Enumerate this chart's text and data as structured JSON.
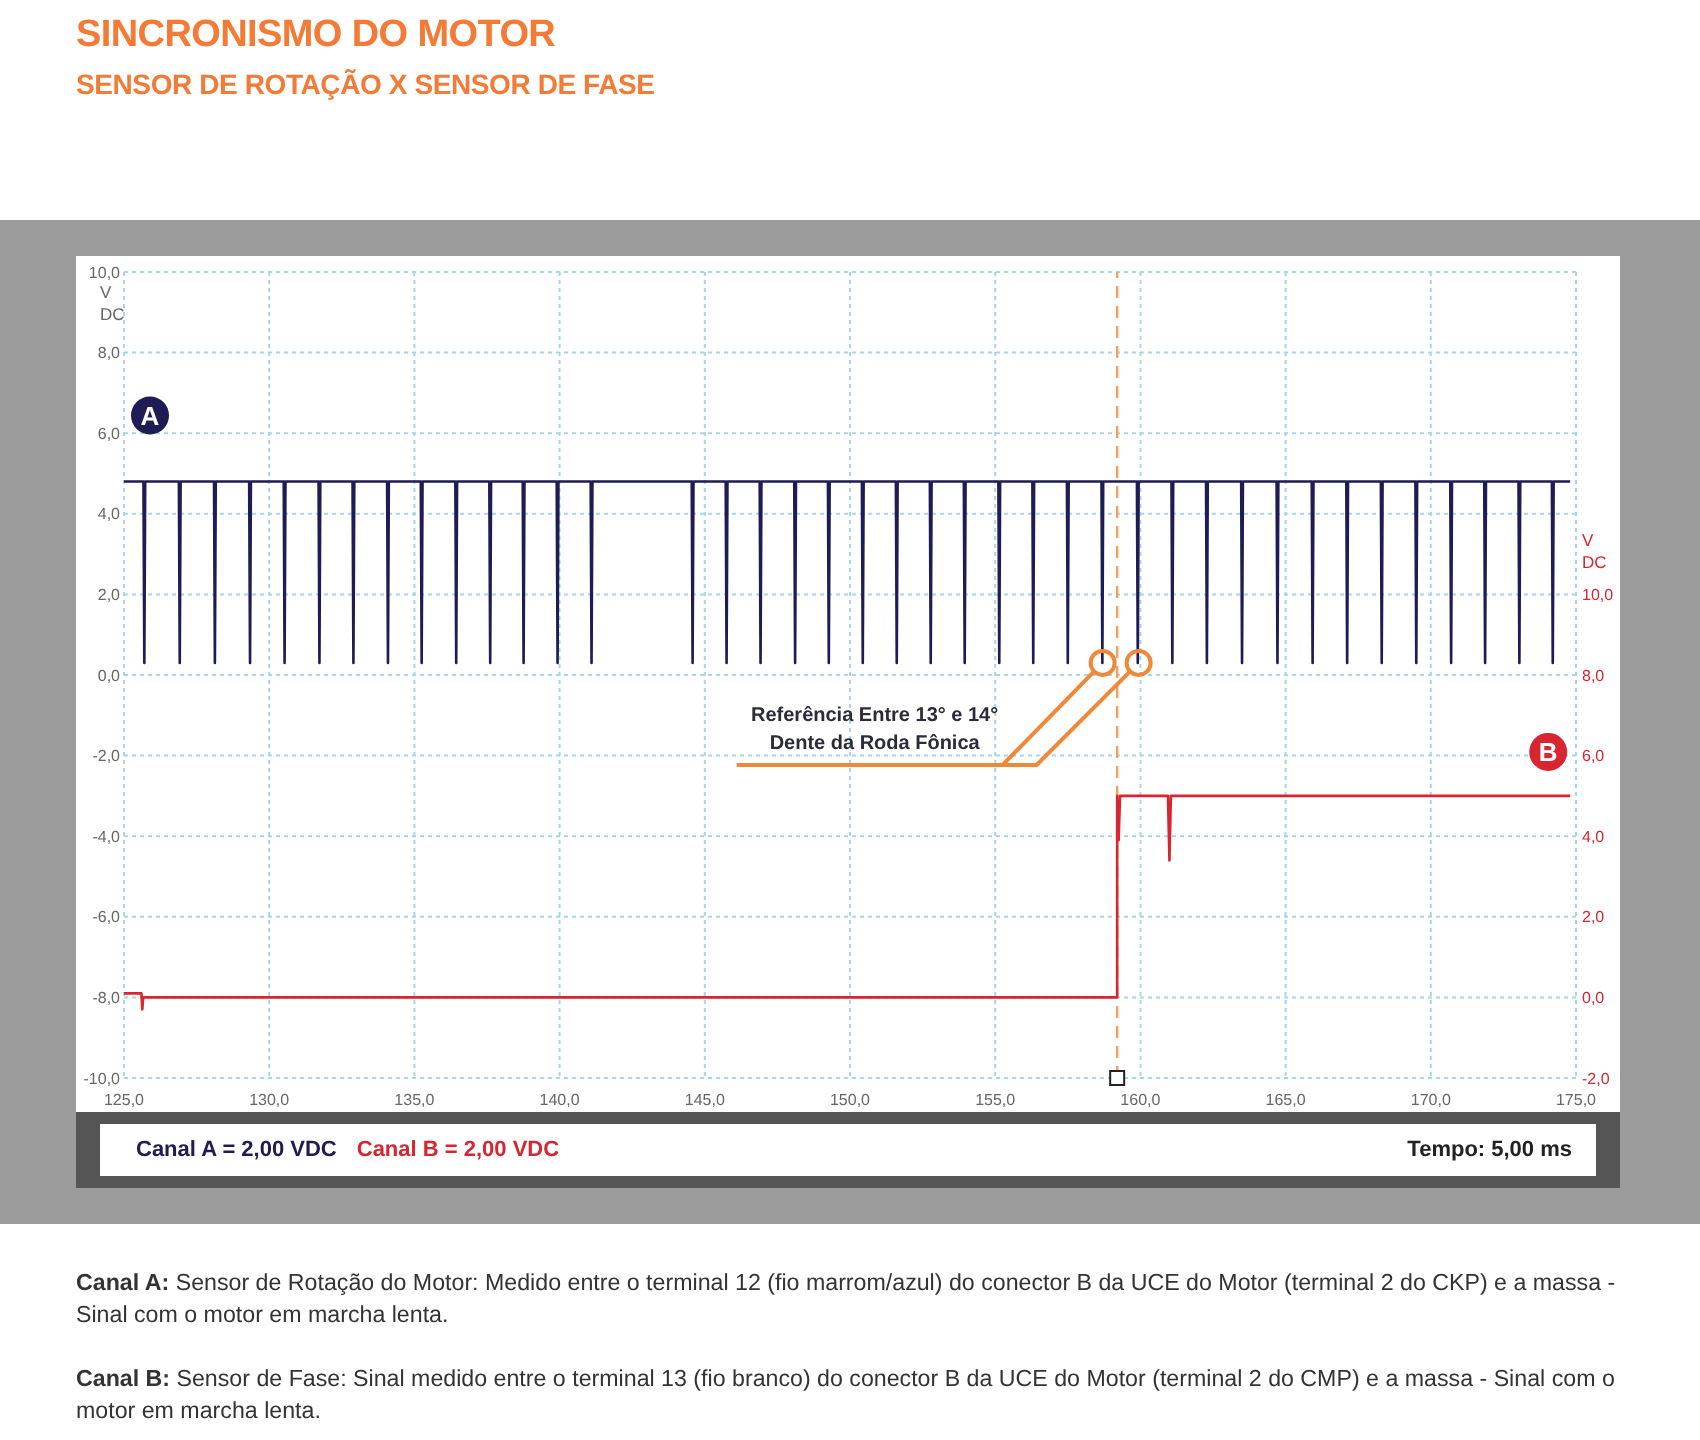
{
  "chart_data": {
    "type": "line",
    "title": "SINCRONISMO DO MOTOR",
    "subtitle": "SENSOR DE ROTAÇÃO X SENSOR DE FASE",
    "ylabel": "V\nDC",
    "y2label": "V\nDC",
    "xlim": [
      125,
      175
    ],
    "xticks": [
      {
        "value": 125,
        "label": "125,0"
      },
      {
        "value": 130,
        "label": "130,0"
      },
      {
        "value": 135,
        "label": "135,0"
      },
      {
        "value": 140,
        "label": "140,0"
      },
      {
        "value": 145,
        "label": "145,0"
      },
      {
        "value": 150,
        "label": "150,0"
      },
      {
        "value": 155,
        "label": "155,0"
      },
      {
        "value": 160,
        "label": "160,0"
      },
      {
        "value": 165,
        "label": "165,0"
      },
      {
        "value": 170,
        "label": "170,0"
      },
      {
        "value": 175,
        "label": "175,0"
      }
    ],
    "ylim": [
      -10,
      10
    ],
    "yticks": [
      {
        "value": -10,
        "label": "-10,0"
      },
      {
        "value": -8,
        "label": "-8,0"
      },
      {
        "value": -6,
        "label": "-6,0"
      },
      {
        "value": -4,
        "label": "-4,0"
      },
      {
        "value": -2,
        "label": "-2,0"
      },
      {
        "value": 0,
        "label": "0,0"
      },
      {
        "value": 2,
        "label": "2,0"
      },
      {
        "value": 4,
        "label": "4,0"
      },
      {
        "value": 6,
        "label": "6,0"
      },
      {
        "value": 8,
        "label": "8,0"
      },
      {
        "value": 10,
        "label": "10,0"
      }
    ],
    "y2lim": [
      -2,
      18
    ],
    "y2ticks": [
      {
        "value": -2,
        "label": "-2,0"
      },
      {
        "value": 0,
        "label": "0,0"
      },
      {
        "value": 2,
        "label": "2,0"
      },
      {
        "value": 4,
        "label": "4,0"
      },
      {
        "value": 6,
        "label": "6,0"
      },
      {
        "value": 8,
        "label": "8,0"
      },
      {
        "value": 10,
        "label": "10,0"
      }
    ],
    "grid": true,
    "marker": "none",
    "series": [
      {
        "name": "A",
        "color": "#1f1b55",
        "x": [
          125.0,
          125.67,
          125.7,
          125.73,
          126.89,
          126.92,
          126.95,
          128.1,
          128.13,
          128.16,
          129.31,
          129.34,
          129.37,
          130.5,
          130.53,
          130.56,
          131.7,
          131.73,
          131.76,
          132.87,
          132.9,
          132.93,
          134.06,
          134.09,
          134.12,
          135.22,
          135.25,
          135.28,
          136.41,
          136.44,
          136.47,
          137.58,
          137.61,
          137.64,
          138.73,
          138.76,
          138.79,
          139.9,
          139.93,
          139.96,
          141.07,
          141.1,
          141.13,
          144.55,
          144.58,
          144.61,
          145.72,
          145.75,
          145.78,
          146.89,
          146.92,
          146.95,
          148.08,
          148.11,
          148.14,
          149.24,
          149.27,
          149.3,
          150.41,
          150.44,
          150.47,
          151.58,
          151.61,
          151.64,
          152.75,
          152.78,
          152.81,
          153.92,
          153.95,
          153.98,
          155.11,
          155.14,
          155.17,
          156.28,
          156.31,
          156.34,
          157.47,
          157.5,
          157.53,
          158.66,
          158.69,
          158.72,
          159.88,
          159.91,
          159.94,
          161.07,
          161.1,
          161.13,
          162.26,
          162.29,
          162.32,
          163.47,
          163.5,
          163.53,
          164.69,
          164.72,
          164.75,
          165.9,
          165.93,
          165.96,
          167.09,
          167.12,
          167.15,
          168.28,
          168.31,
          168.34,
          169.47,
          169.5,
          169.53,
          170.67,
          170.7,
          170.73,
          171.84,
          171.87,
          171.9,
          173.02,
          173.05,
          173.08,
          174.17,
          174.2,
          174.23,
          174.8
        ],
        "values": [
          4.8,
          4.8,
          0.3,
          4.8,
          4.8,
          0.3,
          4.8,
          4.8,
          0.3,
          4.8,
          4.8,
          0.3,
          4.8,
          4.8,
          0.3,
          4.8,
          4.8,
          0.3,
          4.8,
          4.8,
          0.3,
          4.8,
          4.8,
          0.3,
          4.8,
          4.8,
          0.3,
          4.8,
          4.8,
          0.3,
          4.8,
          4.8,
          0.3,
          4.8,
          4.8,
          0.3,
          4.8,
          4.8,
          0.3,
          4.8,
          4.8,
          0.3,
          4.8,
          4.8,
          0.3,
          4.8,
          4.8,
          0.3,
          4.8,
          4.8,
          0.3,
          4.8,
          4.8,
          0.3,
          4.8,
          4.8,
          0.3,
          4.8,
          4.8,
          0.3,
          4.8,
          4.8,
          0.3,
          4.8,
          4.8,
          0.3,
          4.8,
          4.8,
          0.3,
          4.8,
          4.8,
          0.3,
          4.8,
          4.8,
          0.3,
          4.8,
          4.8,
          0.3,
          4.8,
          4.8,
          0.3,
          4.8,
          4.8,
          0.3,
          4.8,
          4.8,
          0.3,
          4.8,
          4.8,
          0.3,
          4.8,
          4.8,
          0.3,
          4.8,
          4.8,
          0.3,
          4.8,
          4.8,
          0.3,
          4.8,
          4.8,
          0.3,
          4.8,
          4.8,
          0.3,
          4.8,
          4.8,
          0.3,
          4.8,
          4.8,
          0.3,
          4.8,
          4.8,
          0.3,
          4.8,
          4.8,
          0.3,
          4.8,
          4.8,
          0.3,
          4.8,
          4.8
        ]
      },
      {
        "name": "B",
        "color": "#d7262f",
        "axis": "y2",
        "x": [
          125.0,
          125.6,
          125.63,
          125.66,
          159.2,
          159.2,
          159.25,
          159.3,
          160.95,
          161.0,
          161.05,
          174.8
        ],
        "values": [
          0.1,
          0.1,
          -0.3,
          0.0,
          0.0,
          5.0,
          3.9,
          5.0,
          5.0,
          3.4,
          5.0,
          5.0
        ]
      }
    ],
    "ref_lines": [
      {
        "axis": "x",
        "value": 159.2,
        "color": "#f5a15c",
        "line_style": "dashed"
      }
    ],
    "annotations": [
      {
        "text": "Referência Entre 13° e 14°\nDente da Roda Fônica",
        "x": 158.7,
        "y": 0.3
      },
      "Canal A = 2,00 VDC",
      "Canal B = 2,00 VDC",
      "Tempo: 5,00 ms",
      "Canal A: Sensor de Rotação do Motor: Medido entre o terminal 12 (fio marrom/azul) do conector B da UCE do Motor (terminal 2 do CKP) e a massa - Sinal com o motor em marcha lenta.",
      "Canal B: Sensor de Fase: Sinal medido entre o terminal 13 (fio branco) do conector B da UCE do Motor (terminal 2 do CMP) e a massa - Sinal com o motor em marcha lenta."
    ]
  }
}
